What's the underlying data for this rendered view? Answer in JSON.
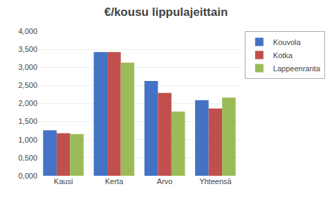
{
  "chart_data": {
    "type": "bar",
    "title": "€/kousu lippulajeittain",
    "categories": [
      "Kausi",
      "Kerta",
      "Arvo",
      "Yhteensä"
    ],
    "series": [
      {
        "name": "Kouvola",
        "color": "#4472C4",
        "values": [
          1.26,
          3.42,
          2.62,
          2.09
        ]
      },
      {
        "name": "Kotka",
        "color": "#C0504D",
        "values": [
          1.175,
          3.42,
          2.29,
          1.86
        ]
      },
      {
        "name": "Lappeenranta",
        "color": "#9BBB59",
        "values": [
          1.155,
          3.13,
          1.775,
          2.165
        ]
      }
    ],
    "ylim": [
      0,
      4.0
    ],
    "yticks": [
      {
        "value": 0.0,
        "label": "0,000"
      },
      {
        "value": 0.5,
        "label": "0,500"
      },
      {
        "value": 1.0,
        "label": "1,000"
      },
      {
        "value": 1.5,
        "label": "1,500"
      },
      {
        "value": 2.0,
        "label": "2,000"
      },
      {
        "value": 2.5,
        "label": "2,500"
      },
      {
        "value": 3.0,
        "label": "3,000"
      },
      {
        "value": 3.5,
        "label": "3,500"
      },
      {
        "value": 4.0,
        "label": "4,000"
      }
    ],
    "grid": true,
    "legend": "upper right"
  }
}
